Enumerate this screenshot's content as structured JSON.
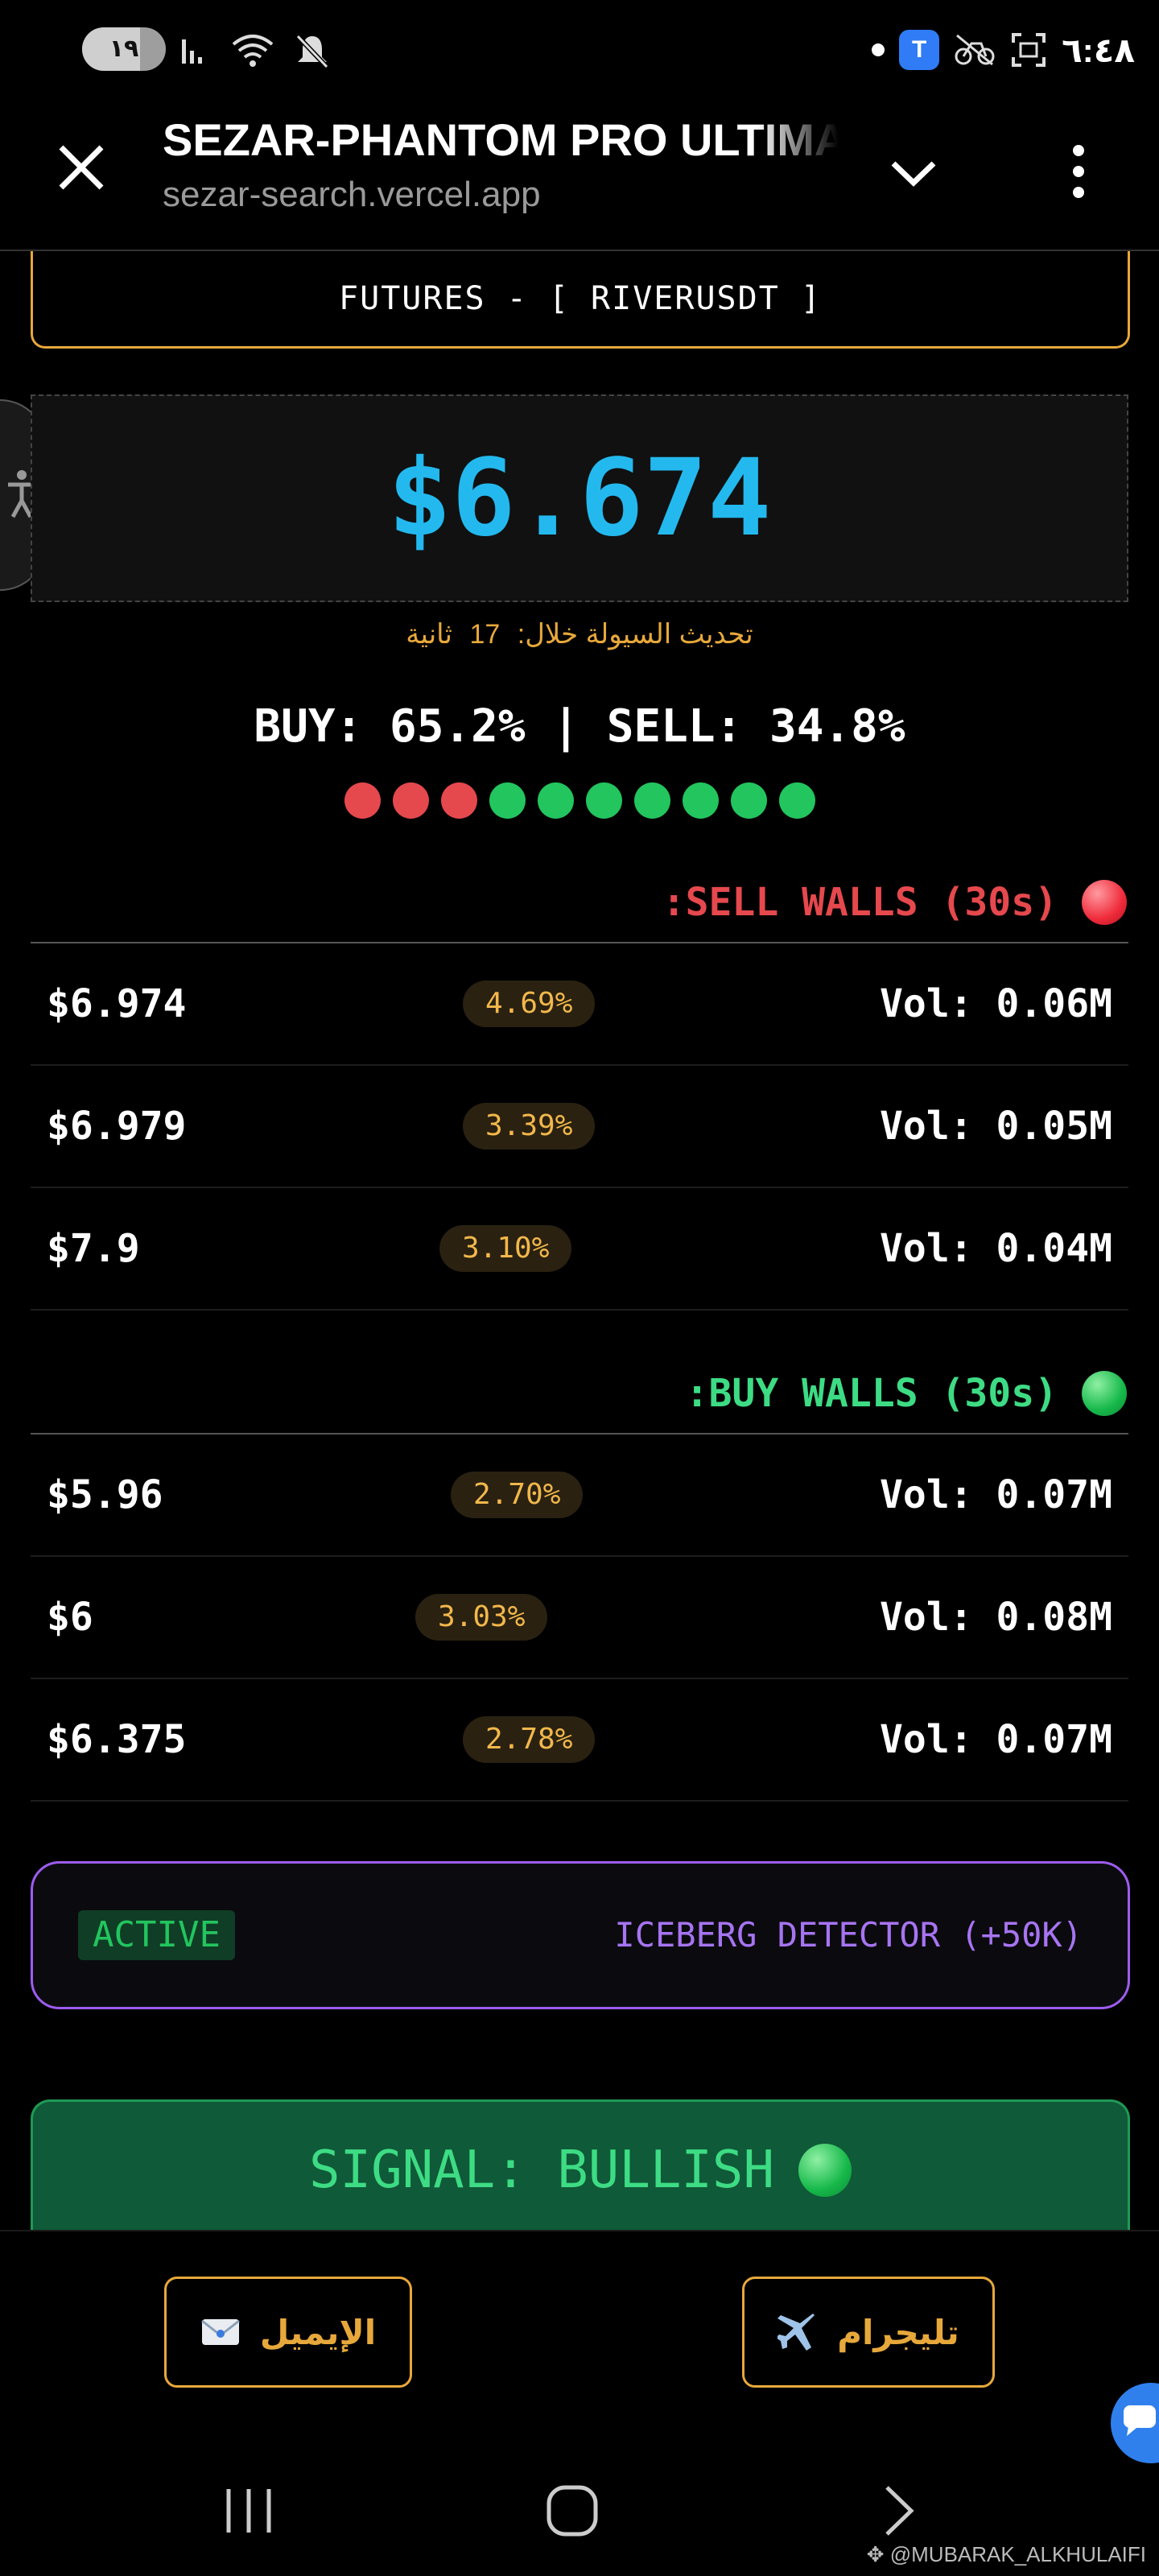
{
  "status_bar": {
    "battery": "١٩",
    "time": "٦:٤٨",
    "icons": [
      "signal-bars-icon",
      "wifi-icon",
      "mute-icon",
      "notification-dot-icon",
      "app-badge-icon",
      "no-bicycle-icon",
      "screenshot-icon"
    ]
  },
  "browser": {
    "title": "SEZAR-PHANTOM PRO ULTIMATE",
    "url": "sezar-search.vercel.app"
  },
  "futures": {
    "label": "FUTURES - [ RIVERUSDT ]"
  },
  "price": "$6.674",
  "refresh": {
    "prefix": "تحديث السيولة خلال:",
    "seconds": "17",
    "suffix": "ثانية"
  },
  "ratio": "BUY: 65.2% | SELL: 34.8%",
  "pressure_dots": [
    "#e5484d",
    "#e5484d",
    "#e5484d",
    "#22c55e",
    "#22c55e",
    "#22c55e",
    "#22c55e",
    "#22c55e",
    "#22c55e",
    "#22c55e"
  ],
  "sell_walls": {
    "title": ":SELL WALLS (30s)",
    "color": "#e5484d",
    "rows": [
      {
        "price": "$6.974",
        "pct": "4.69%",
        "vol": "Vol: 0.06M"
      },
      {
        "price": "$6.979",
        "pct": "3.39%",
        "vol": "Vol: 0.05M"
      },
      {
        "price": "$7.9",
        "pct": "3.10%",
        "vol": "Vol: 0.04M"
      }
    ]
  },
  "buy_walls": {
    "title": ":BUY WALLS (30s)",
    "color": "#3ddc84",
    "rows": [
      {
        "price": "$5.96",
        "pct": "2.70%",
        "vol": "Vol: 0.07M"
      },
      {
        "price": "$6",
        "pct": "3.03%",
        "vol": "Vol: 0.08M"
      },
      {
        "price": "$6.375",
        "pct": "2.78%",
        "vol": "Vol: 0.07M"
      }
    ]
  },
  "iceberg": {
    "badge": "ACTIVE",
    "label": "ICEBERG DETECTOR (+50K)"
  },
  "signal": {
    "label": "SIGNAL: BULLISH"
  },
  "actions": {
    "email": "الإيميل",
    "telegram": "تليجرام"
  },
  "watermark": "@MUBARAK_ALKHULAIFI"
}
